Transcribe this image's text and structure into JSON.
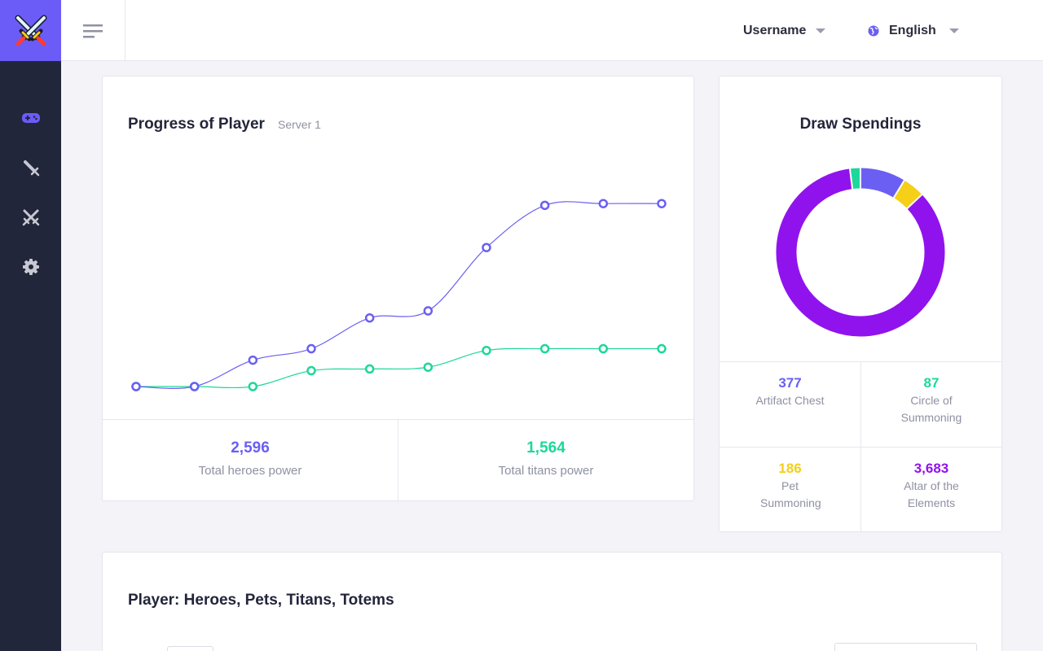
{
  "topbar": {
    "username": "Username",
    "language": "English"
  },
  "sidebar": {
    "items": [
      {
        "name": "gamepad",
        "active": true
      },
      {
        "name": "sword",
        "active": false
      },
      {
        "name": "crossed-swords",
        "active": false
      },
      {
        "name": "settings",
        "active": false
      }
    ]
  },
  "colors": {
    "accent": "#6b5cf7",
    "heroes": "#6a5ff2",
    "titans": "#1dd79b",
    "pet": "#f5cf18",
    "altar": "#9013ee",
    "sidebar": "#22263a"
  },
  "progress": {
    "title": "Progress of Player",
    "subtitle": "Server 1",
    "heroes_total": "2,596",
    "heroes_label": "Total heroes power",
    "titans_total": "1,564",
    "titans_label": "Total titans power"
  },
  "chart_data": [
    {
      "type": "line",
      "title": "Progress of Player",
      "x": [
        1,
        2,
        3,
        4,
        5,
        6,
        7,
        8,
        9,
        10
      ],
      "series": [
        {
          "name": "Total heroes power",
          "values": [
            0,
            0,
            150,
            215,
            390,
            430,
            790,
            1030,
            1040,
            1040
          ]
        },
        {
          "name": "Total titans power",
          "values": [
            0,
            0,
            0,
            90,
            100,
            110,
            205,
            215,
            215,
            215
          ]
        }
      ],
      "ylim": [
        0,
        1300
      ]
    },
    {
      "type": "pie",
      "title": "Draw Spendings",
      "categories": [
        "Artifact Chest",
        "Circle of Summoning",
        "Pet Summoning",
        "Altar of the Elements"
      ],
      "values": [
        377,
        87,
        186,
        3683
      ]
    }
  ],
  "draw_spendings": {
    "title": "Draw Spendings",
    "items": [
      {
        "value": "377",
        "label": "Artifact Chest",
        "color": "#6a5ff2"
      },
      {
        "value": "87",
        "label": "Circle of Summoning",
        "color": "#1dd79b"
      },
      {
        "value": "186",
        "label": "Pet Summoning",
        "color": "#f5cf18"
      },
      {
        "value": "3,683",
        "label": "Altar of the Elements",
        "color": "#9013ee"
      }
    ]
  },
  "roster": {
    "title": "Player: Heroes, Pets, Titans, Totems"
  }
}
